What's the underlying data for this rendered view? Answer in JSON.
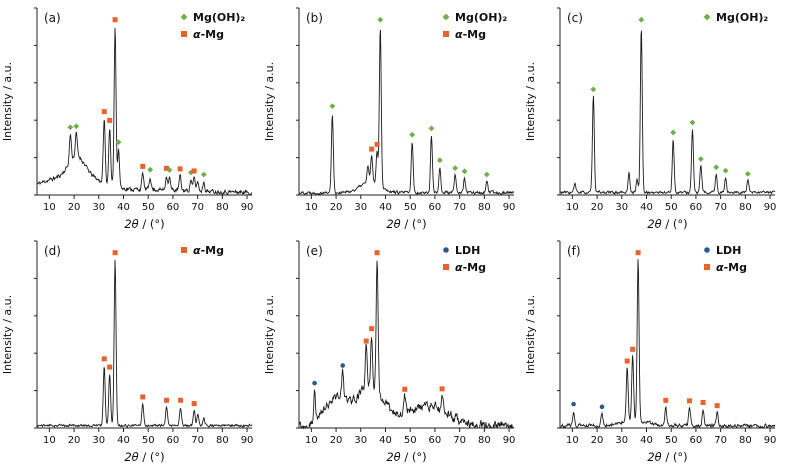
{
  "figure": {
    "xlabel": "2θ / (°)",
    "ylabel": "Intensity / a.u.",
    "line_color": "#1c1c1c"
  },
  "phases": {
    "mgoh2": {
      "label": "Mg(OH)₂",
      "marker": "diamond",
      "color": "#6fae49"
    },
    "amg": {
      "label": "α-Mg",
      "marker": "square",
      "color": "#e8622a"
    },
    "ldh": {
      "label": "LDH",
      "marker": "circle",
      "color": "#2a5a8c"
    }
  },
  "peaks_format": [
    "two_theta_deg",
    "relative_intensity",
    "phase",
    "marked"
  ],
  "humps_format": [
    "center_deg",
    "width_deg",
    "relative_height"
  ],
  "chart_data": [
    {
      "type": "line",
      "panel": "(a)",
      "xlabel": "2θ / (°)",
      "ylabel": "Intensity / a.u.",
      "xlim": [
        5,
        92
      ],
      "xticks": [
        10,
        20,
        30,
        40,
        50,
        60,
        70,
        80,
        90
      ],
      "legend": [
        "mgoh2",
        "amg"
      ],
      "seed": 11,
      "noise": 0.014,
      "humps": [
        [
          14,
          9,
          0.08
        ],
        [
          21,
          3.2,
          0.13
        ],
        [
          27,
          6,
          0.05
        ],
        [
          45,
          22,
          0.02
        ]
      ],
      "peaks": [
        [
          18.5,
          0.17,
          "mgoh2",
          1
        ],
        [
          20.9,
          0.14,
          "mgoh2",
          1
        ],
        [
          32.2,
          0.4,
          "amg",
          1
        ],
        [
          34.4,
          0.36,
          "amg",
          1
        ],
        [
          36.6,
          1.0,
          "amg",
          1
        ],
        [
          38.0,
          0.24,
          "mgoh2",
          1
        ],
        [
          47.8,
          0.1,
          "amg",
          1
        ],
        [
          50.8,
          0.08,
          "mgoh2",
          1
        ],
        [
          57.4,
          0.09,
          "amg",
          1
        ],
        [
          58.6,
          0.08,
          "mgoh2",
          1
        ],
        [
          62.9,
          0.09,
          "amg",
          1
        ],
        [
          67.3,
          0.07,
          "mgoh2",
          1
        ],
        [
          68.6,
          0.08,
          "amg",
          1
        ],
        [
          70.0,
          0.06,
          "amg",
          0
        ],
        [
          72.5,
          0.06,
          "mgoh2",
          1
        ]
      ]
    },
    {
      "type": "line",
      "panel": "(b)",
      "xlabel": "2θ / (°)",
      "ylabel": "Intensity / a.u.",
      "xlim": [
        5,
        92
      ],
      "xticks": [
        10,
        20,
        30,
        40,
        50,
        60,
        70,
        80,
        90
      ],
      "legend": [
        "mgoh2",
        "amg"
      ],
      "seed": 22,
      "noise": 0.01,
      "humps": [
        [
          34,
          4,
          0.07
        ]
      ],
      "peaks": [
        [
          18.5,
          0.5,
          "mgoh2",
          1
        ],
        [
          32.9,
          0.1,
          "mgoh2",
          0
        ],
        [
          34.4,
          0.16,
          "amg",
          1
        ],
        [
          36.6,
          0.2,
          "amg",
          1
        ],
        [
          37.9,
          1.0,
          "mgoh2",
          1
        ],
        [
          50.8,
          0.32,
          "mgoh2",
          1
        ],
        [
          58.6,
          0.36,
          "mgoh2",
          1
        ],
        [
          62.0,
          0.16,
          "mgoh2",
          1
        ],
        [
          68.2,
          0.11,
          "mgoh2",
          1
        ],
        [
          72.0,
          0.09,
          "mgoh2",
          1
        ],
        [
          81.0,
          0.07,
          "mgoh2",
          1
        ]
      ]
    },
    {
      "type": "line",
      "panel": "(c)",
      "xlabel": "2θ / (°)",
      "ylabel": "Intensity / a.u.",
      "xlim": [
        5,
        92
      ],
      "xticks": [
        10,
        20,
        30,
        40,
        50,
        60,
        70,
        80,
        90
      ],
      "legend": [
        "mgoh2"
      ],
      "seed": 33,
      "noise": 0.009,
      "humps": [],
      "peaks": [
        [
          11.0,
          0.05,
          "mgoh2",
          0
        ],
        [
          18.5,
          0.58,
          "mgoh2",
          1
        ],
        [
          32.9,
          0.12,
          "mgoh2",
          0
        ],
        [
          36.2,
          0.08,
          "mgoh2",
          0
        ],
        [
          37.9,
          1.0,
          "mgoh2",
          1
        ],
        [
          50.8,
          0.32,
          "mgoh2",
          1
        ],
        [
          58.6,
          0.38,
          "mgoh2",
          1
        ],
        [
          62.0,
          0.16,
          "mgoh2",
          1
        ],
        [
          68.2,
          0.11,
          "mgoh2",
          1
        ],
        [
          72.0,
          0.09,
          "mgoh2",
          1
        ],
        [
          81.0,
          0.07,
          "mgoh2",
          1
        ]
      ]
    },
    {
      "type": "line",
      "panel": "(d)",
      "xlabel": "2θ / (°)",
      "ylabel": "Intensity / a.u.",
      "xlim": [
        5,
        92
      ],
      "xticks": [
        10,
        20,
        30,
        40,
        50,
        60,
        70,
        80,
        90
      ],
      "legend": [
        "amg"
      ],
      "seed": 44,
      "noise": 0.008,
      "humps": [],
      "peaks": [
        [
          32.2,
          0.36,
          "amg",
          1
        ],
        [
          34.4,
          0.31,
          "amg",
          1
        ],
        [
          36.6,
          1.0,
          "amg",
          1
        ],
        [
          47.8,
          0.13,
          "amg",
          1
        ],
        [
          57.4,
          0.11,
          "amg",
          1
        ],
        [
          63.1,
          0.11,
          "amg",
          1
        ],
        [
          68.6,
          0.09,
          "amg",
          1
        ],
        [
          70.1,
          0.06,
          "amg",
          0
        ],
        [
          72.5,
          0.04,
          "amg",
          0
        ]
      ]
    },
    {
      "type": "line",
      "panel": "(e)",
      "xlabel": "2θ / (°)",
      "ylabel": "Intensity / a.u.",
      "xlim": [
        5,
        92
      ],
      "xticks": [
        10,
        20,
        30,
        40,
        50,
        60,
        70,
        80,
        90
      ],
      "legend": [
        "ldh",
        "amg"
      ],
      "seed": 55,
      "noise": 0.032,
      "humps": [
        [
          20,
          4.5,
          0.18
        ],
        [
          33,
          5,
          0.22
        ],
        [
          44,
          9,
          0.06
        ],
        [
          59,
          7,
          0.11
        ]
      ],
      "peaks": [
        [
          11.3,
          0.2,
          "ldh",
          1
        ],
        [
          22.7,
          0.16,
          "ldh",
          1
        ],
        [
          32.2,
          0.25,
          "amg",
          1
        ],
        [
          34.4,
          0.33,
          "amg",
          1
        ],
        [
          36.6,
          0.85,
          "amg",
          1
        ],
        [
          47.8,
          0.1,
          "amg",
          1
        ],
        [
          62.9,
          0.09,
          "amg",
          1
        ]
      ]
    },
    {
      "type": "line",
      "panel": "(f)",
      "xlabel": "2θ / (°)",
      "ylabel": "Intensity / a.u.",
      "xlim": [
        5,
        92
      ],
      "xticks": [
        10,
        20,
        30,
        40,
        50,
        60,
        70,
        80,
        90
      ],
      "legend": [
        "ldh",
        "amg"
      ],
      "seed": 66,
      "noise": 0.012,
      "humps": [
        [
          35,
          6,
          0.03
        ]
      ],
      "peaks": [
        [
          10.5,
          0.09,
          "ldh",
          1
        ],
        [
          22.0,
          0.07,
          "ldh",
          1
        ],
        [
          32.2,
          0.33,
          "amg",
          1
        ],
        [
          34.4,
          0.4,
          "amg",
          1
        ],
        [
          36.6,
          1.0,
          "amg",
          1
        ],
        [
          47.8,
          0.11,
          "amg",
          1
        ],
        [
          57.4,
          0.11,
          "amg",
          1
        ],
        [
          62.9,
          0.1,
          "amg",
          1
        ],
        [
          68.6,
          0.08,
          "amg",
          1
        ]
      ]
    }
  ]
}
